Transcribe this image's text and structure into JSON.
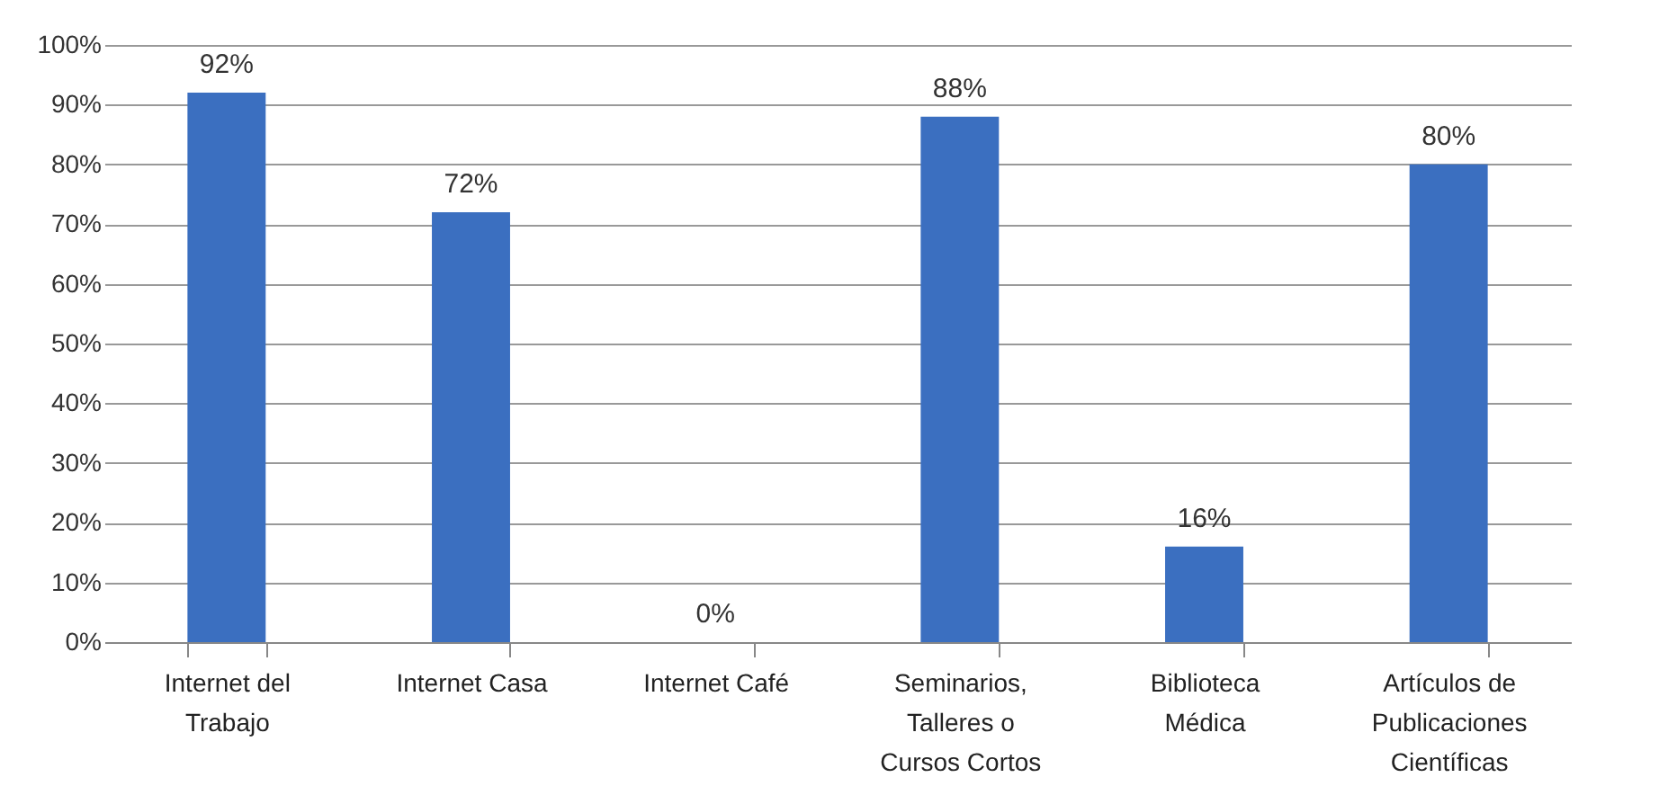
{
  "chart_data": {
    "type": "bar",
    "categories": [
      "Internet del Trabajo",
      "Internet Casa",
      "Internet Café",
      "Seminarios, Talleres o Cursos Cortos",
      "Biblioteca Médica",
      "Artículos de Publicaciones Científicas"
    ],
    "values": [
      92,
      72,
      0,
      88,
      16,
      80
    ],
    "value_labels": [
      "92%",
      "72%",
      "0%",
      "88%",
      "16%",
      "80%"
    ],
    "color": "#3b6fc0",
    "ylim": [
      0,
      100
    ],
    "yticks": [
      {
        "value": 0,
        "label": "0%"
      },
      {
        "value": 10,
        "label": "10%"
      },
      {
        "value": 20,
        "label": "20%"
      },
      {
        "value": 30,
        "label": "30%"
      },
      {
        "value": 40,
        "label": "40%"
      },
      {
        "value": 50,
        "label": "50%"
      },
      {
        "value": 60,
        "label": "60%"
      },
      {
        "value": 70,
        "label": "70%"
      },
      {
        "value": 80,
        "label": "80%"
      },
      {
        "value": 90,
        "label": "90%"
      },
      {
        "value": 100,
        "label": "100%"
      }
    ],
    "grid": "y"
  }
}
